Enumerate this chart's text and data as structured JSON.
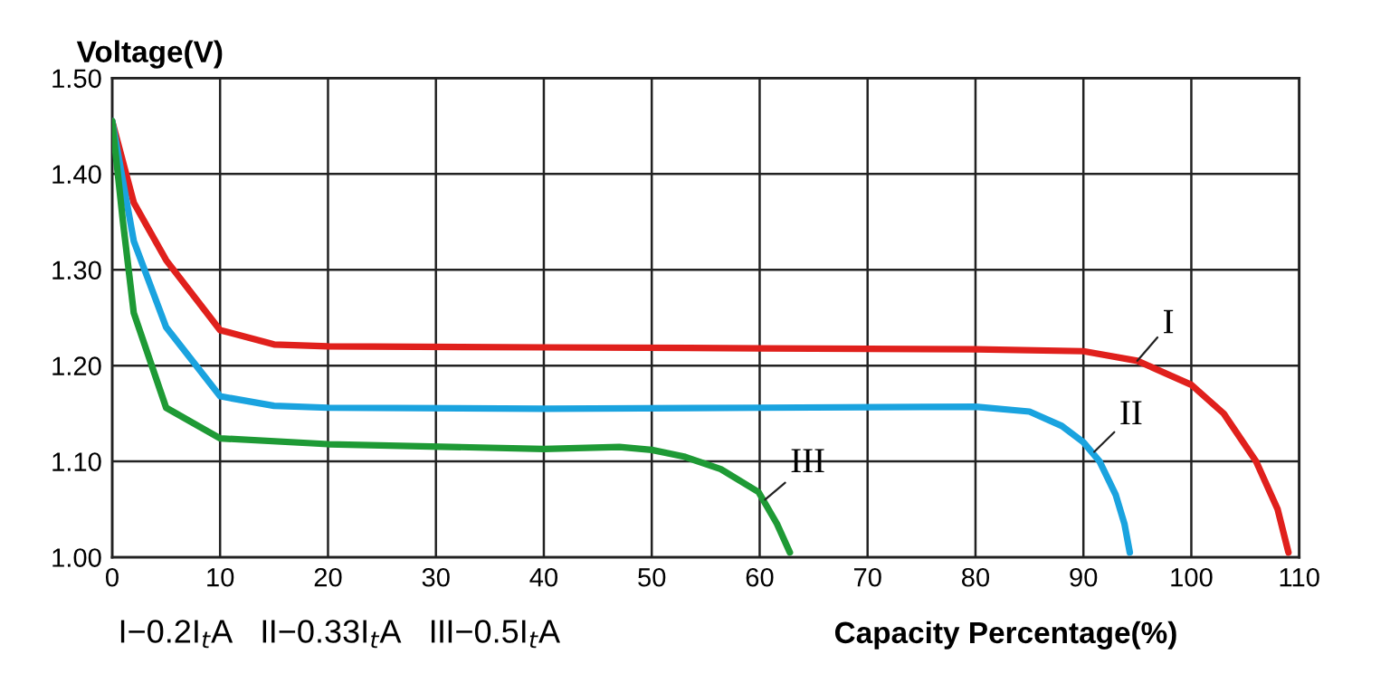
{
  "chart_data": {
    "type": "line",
    "xlabel": "Capacity Percentage(%)",
    "ylabel": "Voltage(V)",
    "xlim": [
      0,
      110
    ],
    "xticks": [
      0,
      10,
      20,
      30,
      40,
      50,
      60,
      70,
      80,
      90,
      100,
      110
    ],
    "ylim": [
      1.0,
      1.5
    ],
    "yticks": [
      {
        "value": 1.0,
        "label": "1.00"
      },
      {
        "value": 1.1,
        "label": "1.10"
      },
      {
        "value": 1.2,
        "label": "1.20"
      },
      {
        "value": 1.3,
        "label": "1.30"
      },
      {
        "value": 1.4,
        "label": "1.40"
      },
      {
        "value": 1.5,
        "label": "1.50"
      }
    ],
    "grid": true,
    "legend": false,
    "marker": "none",
    "line_style": "solid",
    "series": [
      {
        "color": "#e0201c",
        "x": [
          0,
          2,
          5,
          10,
          15,
          20,
          40,
          60,
          80,
          90,
          95,
          100,
          103,
          106,
          108,
          109
        ],
        "values": [
          1.455,
          1.37,
          1.31,
          1.237,
          1.222,
          1.22,
          1.219,
          1.218,
          1.217,
          1.215,
          1.205,
          1.18,
          1.15,
          1.1,
          1.05,
          1.005
        ]
      },
      {
        "color": "#1aa3df",
        "x": [
          0,
          2,
          5,
          10,
          15,
          20,
          40,
          60,
          80,
          85,
          88,
          90,
          91.5,
          93,
          93.8,
          94.3
        ],
        "values": [
          1.455,
          1.33,
          1.24,
          1.168,
          1.158,
          1.156,
          1.155,
          1.156,
          1.157,
          1.152,
          1.137,
          1.12,
          1.1,
          1.065,
          1.035,
          1.005
        ]
      },
      {
        "color": "#1e9a35",
        "x": [
          0,
          1,
          2,
          5,
          10,
          20,
          40,
          47,
          50,
          53,
          56.4,
          59.9,
          61.6,
          62.8
        ],
        "values": [
          1.455,
          1.35,
          1.255,
          1.156,
          1.124,
          1.118,
          1.113,
          1.115,
          1.112,
          1.105,
          1.092,
          1.068,
          1.035,
          1.005
        ]
      }
    ],
    "annotations": [
      {
        "text": "I",
        "x": 95,
        "y": 1.205
      },
      {
        "text": "II",
        "x": 91,
        "y": 1.11
      },
      {
        "text": "III",
        "x": 60.5,
        "y": 1.06
      },
      "I−0.2I$_{t}$A   II−0.33I$_{t}$A   III−0.5I$_{t}$A"
    ]
  }
}
